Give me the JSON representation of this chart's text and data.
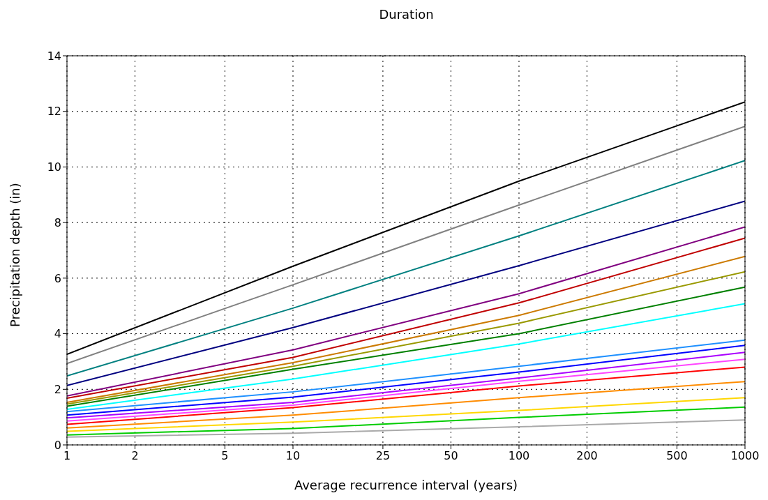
{
  "chart_data": {
    "type": "line",
    "title": "Duration",
    "xlabel": "Average recurrence interval (years)",
    "ylabel": "Precipitation depth (in)",
    "x": [
      1,
      10,
      100,
      1000
    ],
    "series": [
      {
        "color": "#000000",
        "values": [
          3.26,
          6.43,
          9.49,
          12.34
        ]
      },
      {
        "color": "#808080",
        "values": [
          2.93,
          5.76,
          8.63,
          11.46
        ]
      },
      {
        "color": "#008080",
        "values": [
          2.48,
          4.92,
          7.52,
          10.23
        ]
      },
      {
        "color": "#000080",
        "values": [
          2.14,
          4.22,
          6.45,
          8.77
        ]
      },
      {
        "color": "#800080",
        "values": [
          1.76,
          3.42,
          5.44,
          7.84
        ]
      },
      {
        "color": "#c00000",
        "values": [
          1.68,
          3.15,
          5.11,
          7.44
        ]
      },
      {
        "color": "#cc7a00",
        "values": [
          1.53,
          2.96,
          4.66,
          6.78
        ]
      },
      {
        "color": "#999900",
        "values": [
          1.47,
          2.83,
          4.38,
          6.23
        ]
      },
      {
        "color": "#008000",
        "values": [
          1.39,
          2.72,
          4.0,
          5.68
        ]
      },
      {
        "color": "#00ffff",
        "values": [
          1.28,
          2.37,
          3.63,
          5.08
        ]
      },
      {
        "color": "#1e90ff",
        "values": [
          1.2,
          1.91,
          2.83,
          3.77
        ]
      },
      {
        "color": "#0000ff",
        "values": [
          1.07,
          1.72,
          2.62,
          3.58
        ]
      },
      {
        "color": "#aa00ff",
        "values": [
          0.97,
          1.53,
          2.41,
          3.33
        ]
      },
      {
        "color": "#ff44ff",
        "values": [
          0.86,
          1.43,
          2.29,
          3.08
        ]
      },
      {
        "color": "#ff0000",
        "values": [
          0.74,
          1.34,
          2.12,
          2.8
        ]
      },
      {
        "color": "#ff8c00",
        "values": [
          0.61,
          1.07,
          1.7,
          2.28
        ]
      },
      {
        "color": "#ffd700",
        "values": [
          0.49,
          0.82,
          1.24,
          1.7
        ]
      },
      {
        "color": "#00cc00",
        "values": [
          0.36,
          0.59,
          0.99,
          1.36
        ]
      },
      {
        "color": "#aaaaaa",
        "values": [
          0.28,
          0.42,
          0.65,
          0.9
        ]
      }
    ],
    "xlim": [
      1,
      1000
    ],
    "xticks": [
      1,
      2,
      5,
      10,
      25,
      50,
      100,
      200,
      500,
      1000
    ],
    "ylim": [
      0,
      14
    ],
    "yticks": [
      0,
      2,
      4,
      6,
      8,
      10,
      12,
      14
    ],
    "log": "x",
    "grid": true
  }
}
